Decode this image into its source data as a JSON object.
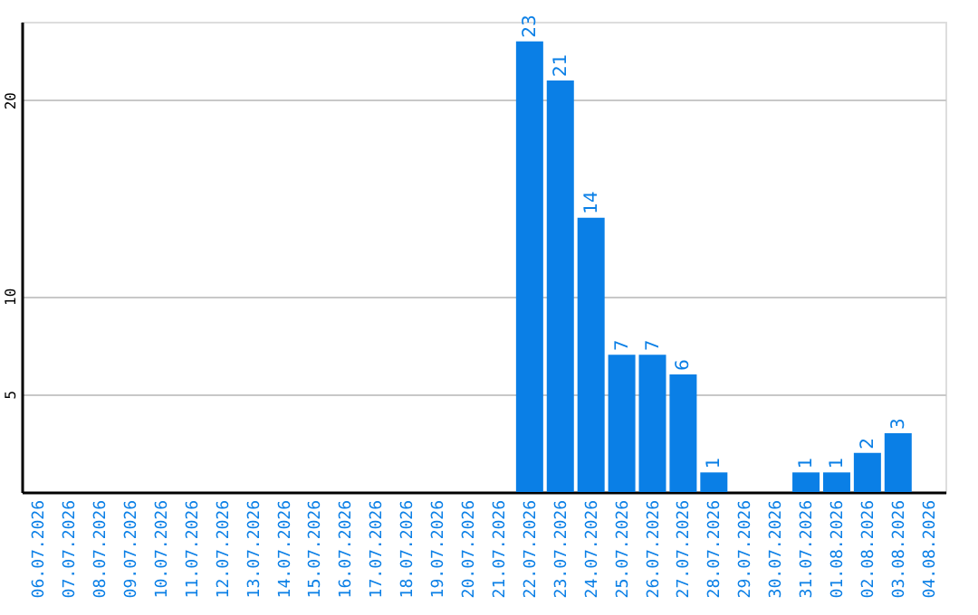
{
  "chart_data": {
    "type": "bar",
    "categories": [
      "06.07.2026",
      "07.07.2026",
      "08.07.2026",
      "09.07.2026",
      "10.07.2026",
      "11.07.2026",
      "12.07.2026",
      "13.07.2026",
      "14.07.2026",
      "15.07.2026",
      "16.07.2026",
      "17.07.2026",
      "18.07.2026",
      "19.07.2026",
      "20.07.2026",
      "21.07.2026",
      "22.07.2026",
      "23.07.2026",
      "24.07.2026",
      "25.07.2026",
      "26.07.2026",
      "27.07.2026",
      "28.07.2026",
      "29.07.2026",
      "30.07.2026",
      "31.07.2026",
      "01.08.2026",
      "02.08.2026",
      "03.08.2026",
      "04.08.2026"
    ],
    "values": [
      0,
      0,
      0,
      0,
      0,
      0,
      0,
      0,
      0,
      0,
      0,
      0,
      0,
      0,
      0,
      0,
      23,
      21,
      14,
      7,
      7,
      6,
      1,
      0,
      0,
      1,
      1,
      2,
      3,
      0
    ],
    "value_labels": [
      null,
      null,
      null,
      null,
      null,
      null,
      null,
      null,
      null,
      null,
      null,
      null,
      null,
      null,
      null,
      null,
      "23",
      "21",
      "14",
      "7",
      "7",
      "6",
      "1",
      null,
      null,
      "1",
      "1",
      "2",
      "3",
      null
    ],
    "color": "#0a7fe6",
    "ylim": [
      0,
      24
    ],
    "yticks": [
      5,
      10,
      20
    ],
    "grid": "y"
  }
}
